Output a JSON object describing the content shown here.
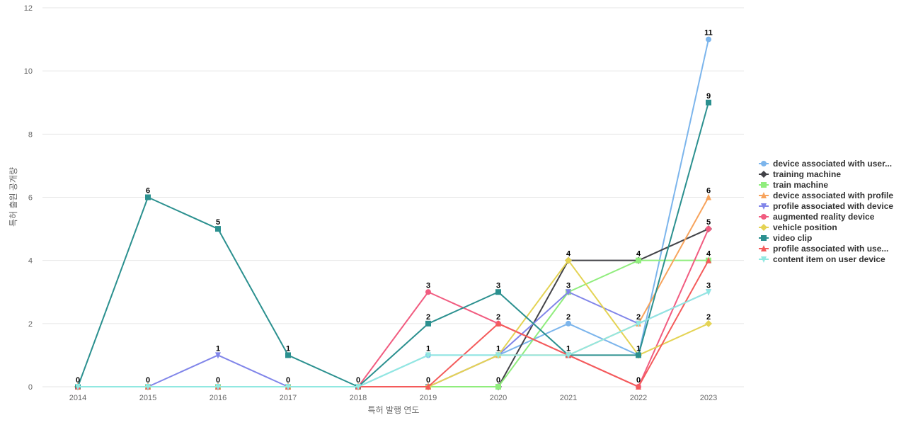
{
  "chart_data": {
    "type": "line",
    "title": "",
    "xlabel": "특허 발행 연도",
    "ylabel": "특허 출원 공개량",
    "categories": [
      "2014",
      "2015",
      "2016",
      "2017",
      "2018",
      "2019",
      "2020",
      "2021",
      "2022",
      "2023"
    ],
    "ylim": [
      0,
      12
    ],
    "yticks": [
      0,
      2,
      4,
      6,
      8,
      10,
      12
    ],
    "grid": true,
    "legend_position": "right",
    "series": [
      {
        "name": "device associated with user...",
        "color": "#7cb5ec",
        "marker": "circle",
        "values": [
          0,
          0,
          0,
          0,
          0,
          1,
          1,
          2,
          1,
          11
        ]
      },
      {
        "name": "training machine",
        "color": "#434348",
        "marker": "diamond",
        "values": [
          0,
          0,
          0,
          0,
          0,
          0,
          0,
          4,
          4,
          5
        ]
      },
      {
        "name": "train machine",
        "color": "#90ed7d",
        "marker": "square",
        "values": [
          0,
          0,
          0,
          0,
          0,
          0,
          0,
          3,
          4,
          4
        ]
      },
      {
        "name": "device associated with profile",
        "color": "#f7a35c",
        "marker": "triangle",
        "values": [
          0,
          0,
          0,
          0,
          0,
          0,
          1,
          1,
          2,
          6
        ]
      },
      {
        "name": "profile associated with device",
        "color": "#8085e9",
        "marker": "triangle-down",
        "values": [
          0,
          0,
          1,
          0,
          0,
          0,
          1,
          3,
          2,
          3
        ]
      },
      {
        "name": "augmented reality device",
        "color": "#f15c80",
        "marker": "circle",
        "values": [
          0,
          0,
          0,
          0,
          0,
          3,
          2,
          1,
          0,
          5
        ]
      },
      {
        "name": "vehicle position",
        "color": "#e4d354",
        "marker": "diamond",
        "values": [
          0,
          0,
          0,
          0,
          0,
          0,
          1,
          4,
          1,
          2
        ]
      },
      {
        "name": "video clip",
        "color": "#2b908f",
        "marker": "square",
        "values": [
          0,
          6,
          5,
          1,
          0,
          2,
          3,
          1,
          1,
          9
        ]
      },
      {
        "name": "profile associated with use...",
        "color": "#f45b5b",
        "marker": "triangle",
        "values": [
          0,
          0,
          0,
          0,
          0,
          0,
          2,
          1,
          0,
          4
        ]
      },
      {
        "name": "content item on user device",
        "color": "#91e8e1",
        "marker": "triangle-down",
        "values": [
          0,
          0,
          0,
          0,
          0,
          1,
          1,
          1,
          2,
          3
        ]
      }
    ],
    "data_labels": [
      {
        "category": "2014",
        "value": 0,
        "text": "0"
      },
      {
        "category": "2015",
        "value": 6,
        "text": "6"
      },
      {
        "category": "2015",
        "value": 0,
        "text": "0"
      },
      {
        "category": "2016",
        "value": 5,
        "text": "5"
      },
      {
        "category": "2016",
        "value": 1,
        "text": "1"
      },
      {
        "category": "2016",
        "value": 0,
        "text": "0"
      },
      {
        "category": "2017",
        "value": 1,
        "text": "1"
      },
      {
        "category": "2017",
        "value": 0,
        "text": "0"
      },
      {
        "category": "2018",
        "value": 0,
        "text": "0"
      },
      {
        "category": "2019",
        "value": 3,
        "text": "3"
      },
      {
        "category": "2019",
        "value": 2,
        "text": "2"
      },
      {
        "category": "2019",
        "value": 1,
        "text": "1"
      },
      {
        "category": "2019",
        "value": 0,
        "text": "0"
      },
      {
        "category": "2020",
        "value": 3,
        "text": "3"
      },
      {
        "category": "2020",
        "value": 2,
        "text": "2"
      },
      {
        "category": "2020",
        "value": 1,
        "text": "1"
      },
      {
        "category": "2020",
        "value": 0,
        "text": "0"
      },
      {
        "category": "2021",
        "value": 4,
        "text": "4"
      },
      {
        "category": "2021",
        "value": 3,
        "text": "3"
      },
      {
        "category": "2021",
        "value": 2,
        "text": "2"
      },
      {
        "category": "2021",
        "value": 1,
        "text": "1"
      },
      {
        "category": "2022",
        "value": 4,
        "text": "4"
      },
      {
        "category": "2022",
        "value": 2,
        "text": "2"
      },
      {
        "category": "2022",
        "value": 1,
        "text": "1"
      },
      {
        "category": "2022",
        "value": 0,
        "text": "0"
      },
      {
        "category": "2023",
        "value": 11,
        "text": "11"
      },
      {
        "category": "2023",
        "value": 9,
        "text": "9"
      },
      {
        "category": "2023",
        "value": 6,
        "text": "6"
      },
      {
        "category": "2023",
        "value": 5,
        "text": "5"
      },
      {
        "category": "2023",
        "value": 4,
        "text": "4"
      },
      {
        "category": "2023",
        "value": 3,
        "text": "3"
      },
      {
        "category": "2023",
        "value": 2,
        "text": "2"
      }
    ]
  }
}
